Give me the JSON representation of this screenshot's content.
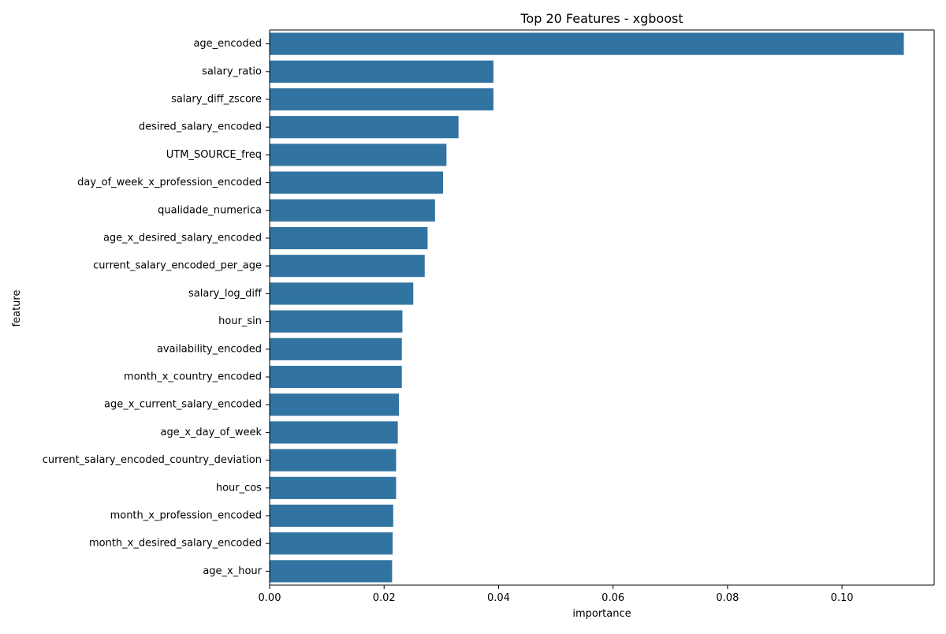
{
  "chart_data": {
    "type": "bar",
    "orientation": "horizontal",
    "title": "Top 20 Features - xgboost",
    "xlabel": "importance",
    "ylabel": "feature",
    "xlim": [
      0,
      0.1161
    ],
    "xticks": [
      0.0,
      0.02,
      0.04,
      0.06,
      0.08,
      0.1
    ],
    "xtick_labels": [
      "0.00",
      "0.02",
      "0.04",
      "0.06",
      "0.08",
      "0.10"
    ],
    "grid": false,
    "bar_color": "#3274a1",
    "categories": [
      "age_encoded",
      "salary_ratio",
      "salary_diff_zscore",
      "desired_salary_encoded",
      "UTM_SOURCE_freq",
      "day_of_week_x_profession_encoded",
      "qualidade_numerica",
      "age_x_desired_salary_encoded",
      "current_salary_encoded_per_age",
      "salary_log_diff",
      "hour_sin",
      "availability_encoded",
      "month_x_country_encoded",
      "age_x_current_salary_encoded",
      "age_x_day_of_week",
      "current_salary_encoded_country_deviation",
      "hour_cos",
      "month_x_profession_encoded",
      "month_x_desired_salary_encoded",
      "age_x_hour"
    ],
    "values": [
      0.1108,
      0.0391,
      0.0391,
      0.033,
      0.0309,
      0.0303,
      0.0289,
      0.0276,
      0.0271,
      0.0251,
      0.0232,
      0.0231,
      0.0231,
      0.0226,
      0.0224,
      0.0221,
      0.0221,
      0.0216,
      0.0215,
      0.0214
    ]
  }
}
